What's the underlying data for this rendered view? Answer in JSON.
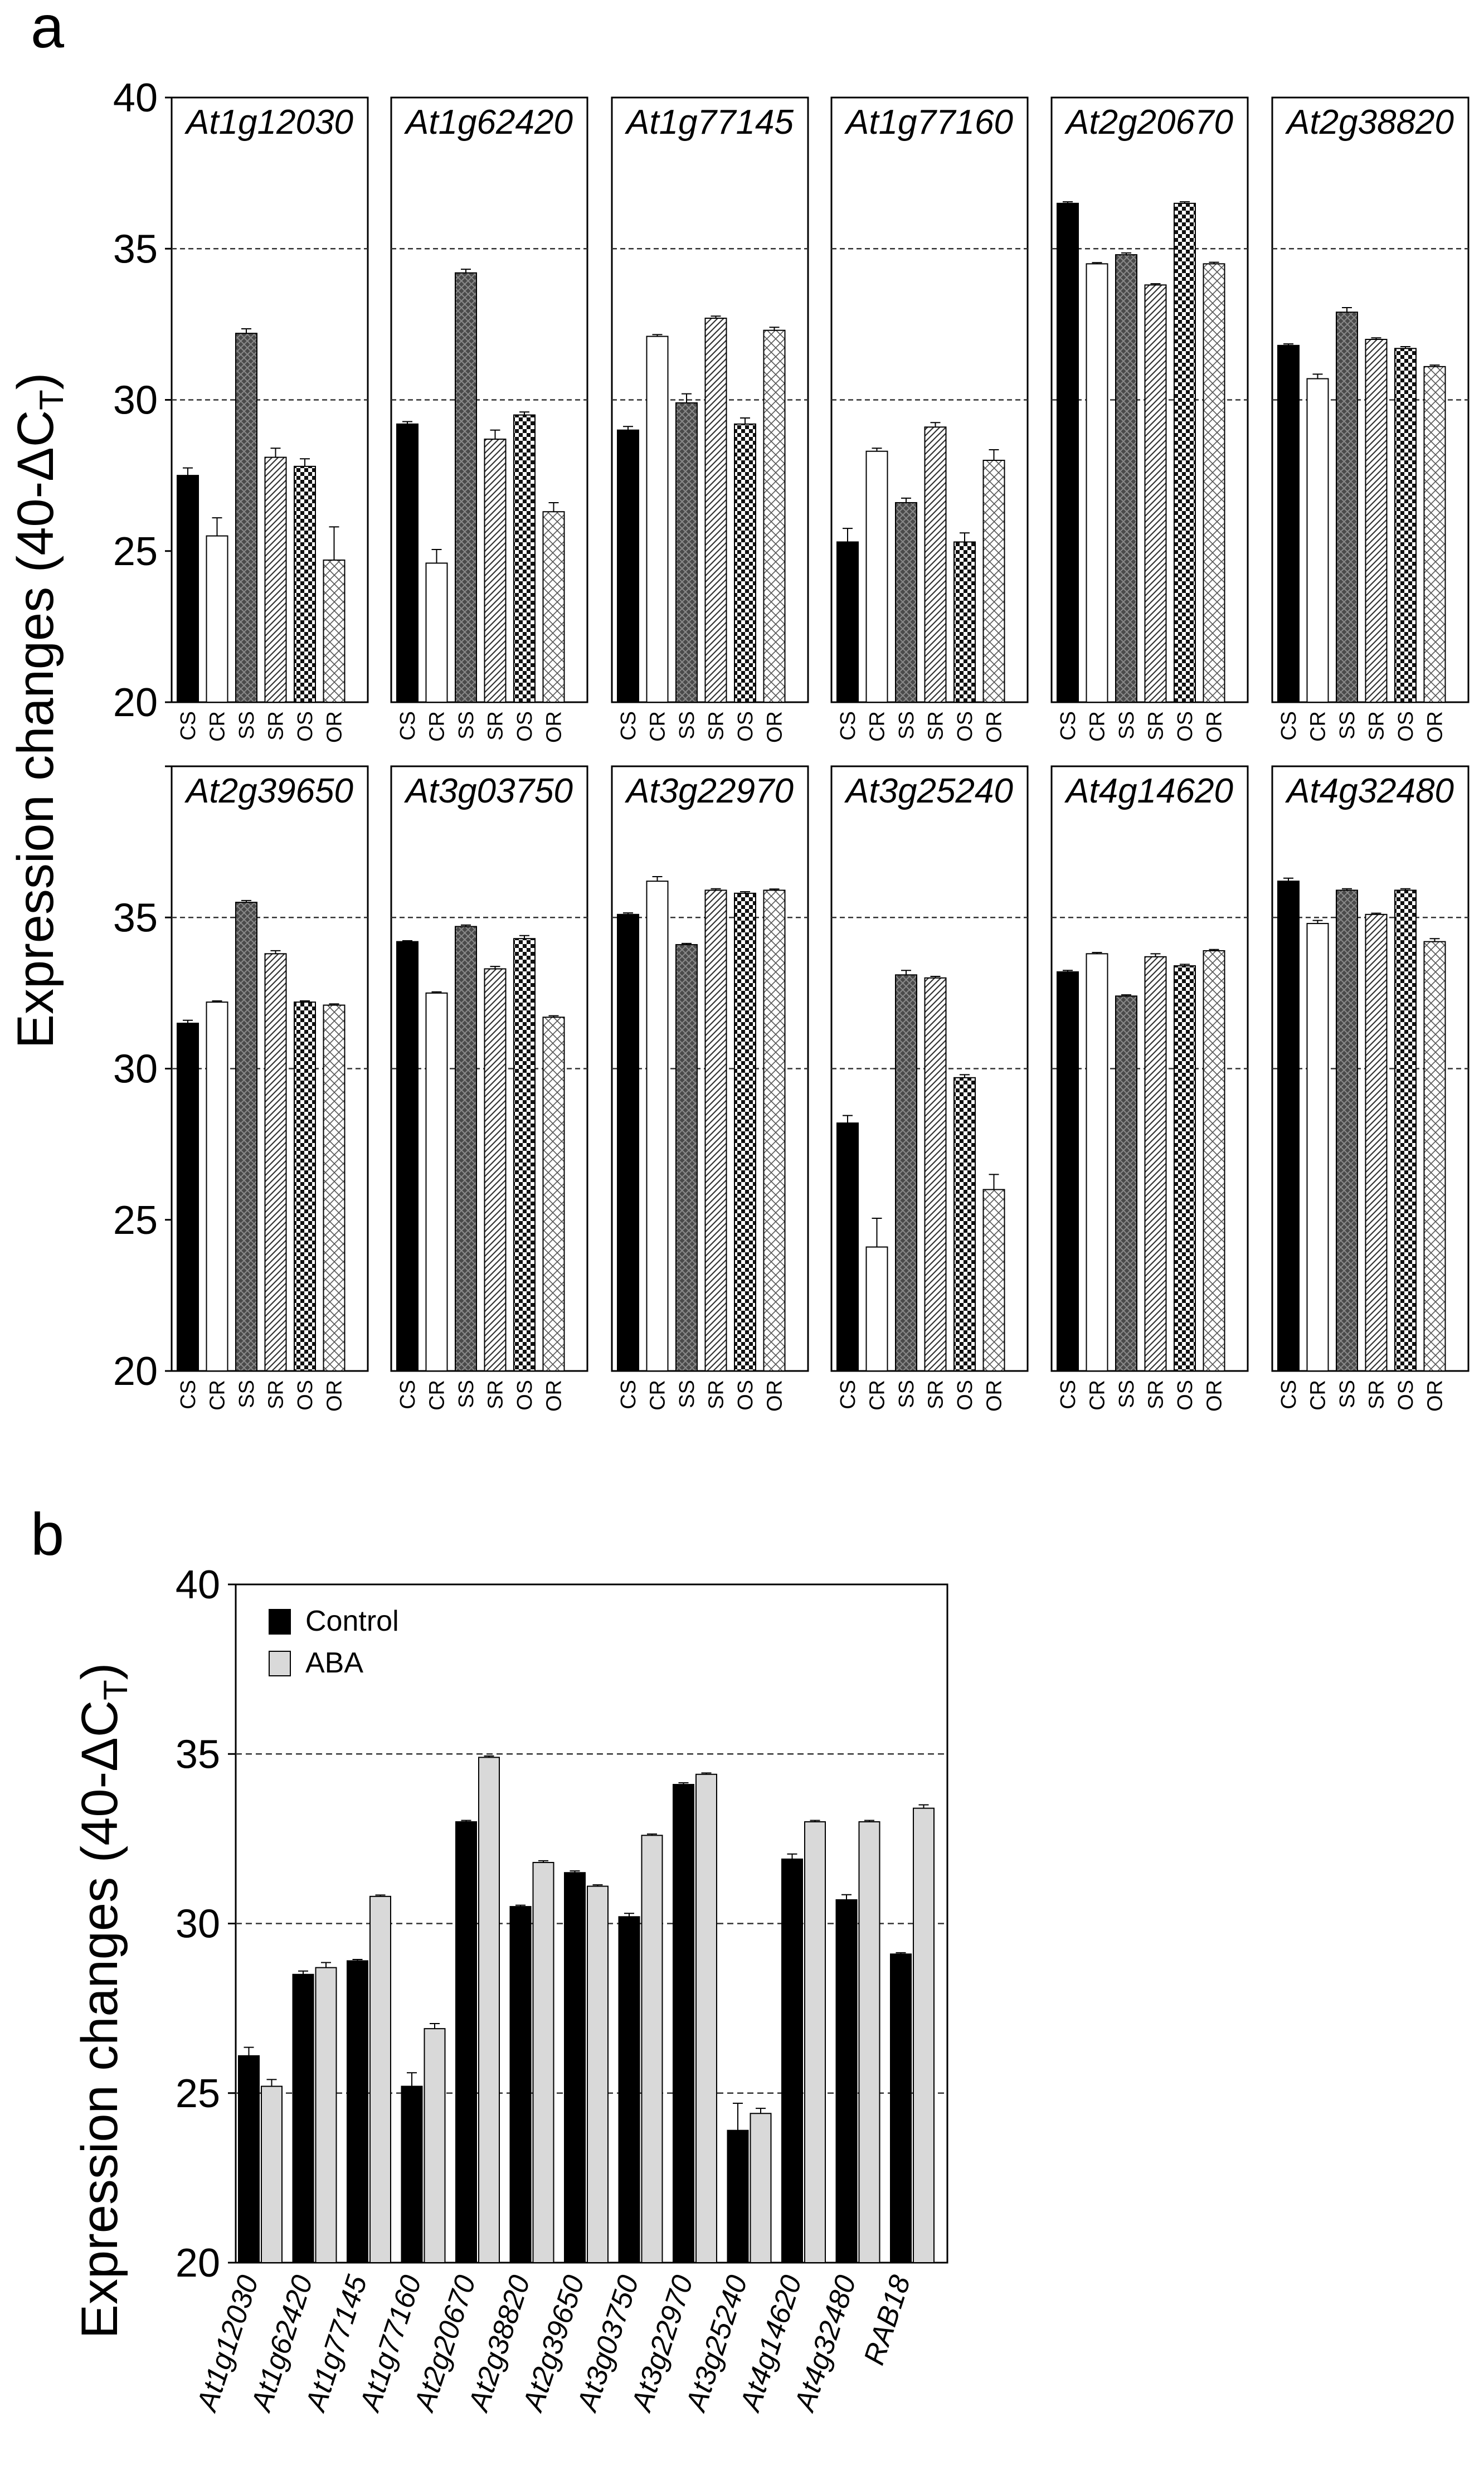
{
  "panel_a": {
    "letter": "a",
    "ylabel_main": "Expression changes (40-ΔC",
    "ylabel_sub": "T",
    "ylabel_close": ")"
  },
  "panel_b": {
    "letter": "b",
    "ylabel_main": "Expression changes (40-ΔC",
    "ylabel_sub": "T",
    "ylabel_close": ")"
  },
  "chart_data": [
    {
      "type": "bar",
      "panel": "a",
      "ylim": [
        20,
        40
      ],
      "yticks": [
        20,
        25,
        30,
        35,
        40
      ],
      "grid": "dashed lines at 30 and 35",
      "categories": [
        "CS",
        "CR",
        "SS",
        "SR",
        "OS",
        "OR"
      ],
      "category_fills": {
        "CS": "solid black",
        "CR": "white",
        "SS": "dark crosshatch",
        "SR": "diagonal hatch",
        "OS": "black-and-white checker",
        "OR": "light crosshatch"
      },
      "genes": [
        {
          "gene": "At1g12030",
          "values": [
            27.5,
            25.5,
            32.2,
            28.1,
            27.8,
            24.7
          ],
          "errors": [
            0.25,
            0.6,
            0.15,
            0.3,
            0.25,
            1.1
          ]
        },
        {
          "gene": "At1g62420",
          "values": [
            29.2,
            24.6,
            34.2,
            28.7,
            29.5,
            26.3
          ],
          "errors": [
            0.08,
            0.45,
            0.12,
            0.3,
            0.1,
            0.3
          ]
        },
        {
          "gene": "At1g77145",
          "values": [
            29.0,
            32.1,
            29.9,
            32.7,
            29.2,
            32.3
          ],
          "errors": [
            0.12,
            0.06,
            0.3,
            0.07,
            0.2,
            0.1
          ]
        },
        {
          "gene": "At1g77160",
          "values": [
            25.3,
            28.3,
            26.6,
            29.1,
            25.3,
            28.0
          ],
          "errors": [
            0.45,
            0.1,
            0.15,
            0.15,
            0.3,
            0.35
          ]
        },
        {
          "gene": "At2g20670",
          "values": [
            36.5,
            34.5,
            34.8,
            33.8,
            36.5,
            34.5
          ],
          "errors": [
            0.05,
            0.04,
            0.06,
            0.04,
            0.05,
            0.05
          ]
        },
        {
          "gene": "At2g38820",
          "values": [
            31.8,
            30.7,
            32.9,
            32.0,
            31.7,
            31.1
          ],
          "errors": [
            0.05,
            0.15,
            0.15,
            0.05,
            0.06,
            0.05
          ]
        },
        {
          "gene": "At2g39650",
          "values": [
            31.5,
            32.2,
            35.5,
            33.8,
            32.2,
            32.1
          ],
          "errors": [
            0.1,
            0.04,
            0.06,
            0.1,
            0.04,
            0.04
          ]
        },
        {
          "gene": "At3g03750",
          "values": [
            34.2,
            32.5,
            34.7,
            33.3,
            34.3,
            31.7
          ],
          "errors": [
            0.03,
            0.04,
            0.05,
            0.08,
            0.1,
            0.05
          ]
        },
        {
          "gene": "At3g22970",
          "values": [
            35.1,
            36.2,
            34.1,
            35.9,
            35.8,
            35.9
          ],
          "errors": [
            0.05,
            0.15,
            0.04,
            0.05,
            0.05,
            0.04
          ]
        },
        {
          "gene": "At3g25240",
          "values": [
            28.2,
            24.1,
            33.1,
            33.0,
            29.7,
            26.0
          ],
          "errors": [
            0.25,
            0.95,
            0.15,
            0.05,
            0.1,
            0.5
          ]
        },
        {
          "gene": "At4g14620",
          "values": [
            33.2,
            33.8,
            32.4,
            33.7,
            33.4,
            33.9
          ],
          "errors": [
            0.05,
            0.04,
            0.04,
            0.1,
            0.05,
            0.04
          ]
        },
        {
          "gene": "At4g32480",
          "values": [
            36.2,
            34.8,
            35.9,
            35.1,
            35.9,
            34.2
          ],
          "errors": [
            0.1,
            0.1,
            0.05,
            0.04,
            0.05,
            0.1
          ]
        }
      ]
    },
    {
      "type": "bar",
      "panel": "b",
      "ylim": [
        20,
        40
      ],
      "yticks": [
        20,
        25,
        30,
        35,
        40
      ],
      "grid": "dashed lines at 25, 30 and 35",
      "legend_position": "top-left",
      "categories": [
        "At1g12030",
        "At1g62420",
        "At1g77145",
        "At1g77160",
        "At2g20670",
        "At2g38820",
        "At2g39650",
        "At3g03750",
        "At3g22970",
        "At3g25240",
        "At4g14620",
        "At4g32480",
        "RAB18"
      ],
      "series": [
        {
          "name": "Control",
          "color": "#000000",
          "values": [
            26.1,
            28.5,
            28.9,
            25.2,
            33.0,
            30.5,
            31.5,
            30.2,
            34.1,
            23.9,
            31.9,
            30.7,
            29.1
          ],
          "errors": [
            0.25,
            0.1,
            0.04,
            0.4,
            0.04,
            0.04,
            0.05,
            0.1,
            0.05,
            0.8,
            0.15,
            0.15,
            0.04
          ]
        },
        {
          "name": "ABA",
          "color": "#d9d9d9",
          "values": [
            25.2,
            28.7,
            30.8,
            26.9,
            34.9,
            31.8,
            31.1,
            32.6,
            34.4,
            24.4,
            33.0,
            33.0,
            33.4
          ],
          "errors": [
            0.2,
            0.15,
            0.04,
            0.15,
            0.04,
            0.05,
            0.04,
            0.04,
            0.04,
            0.15,
            0.04,
            0.04,
            0.1
          ]
        }
      ]
    }
  ]
}
